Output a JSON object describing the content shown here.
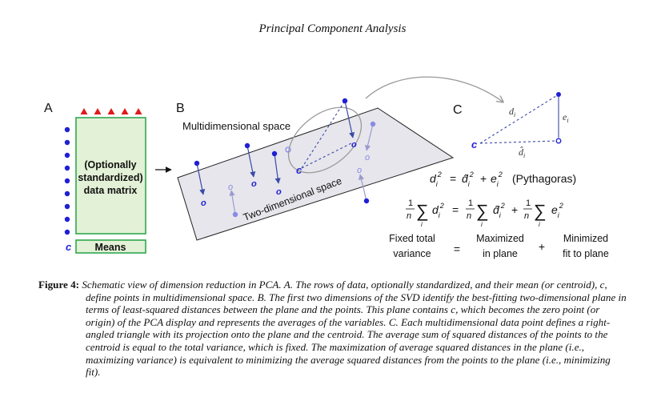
{
  "header": {
    "running_title": "Principal Component Analysis"
  },
  "figure": {
    "panel_a": {
      "label": "A",
      "matrix_text": [
        "(Optionally",
        "standardized)",
        "data matrix"
      ],
      "means_label": "Means",
      "centroid_label": "c",
      "num_rows": 9,
      "num_columns": 5
    },
    "panel_b": {
      "label": "B",
      "multidim_label": "Multidimensional space",
      "plane_label": "Two-dimensional space",
      "centroid_label": "c",
      "projection_label": "o"
    },
    "panel_c": {
      "label": "C",
      "centroid_label": "c",
      "d_label": "d",
      "d_sub": "i",
      "dhat_label": "d̂",
      "dhat_sub": "i",
      "e_label": "e",
      "e_sub": "i",
      "pythagoras_note": "(Pythagoras)",
      "sum_index": "i",
      "fraction_num": "1",
      "fraction_den": "n",
      "fixed_label": [
        "Fixed total",
        "variance"
      ],
      "plane_label": [
        "Maximized",
        "in plane"
      ],
      "fit_label": [
        "Minimized",
        "fit to plane"
      ],
      "equals_sign": "=",
      "plus_sign": "+"
    },
    "colors": {
      "point_blue": "#1f1fd6",
      "projection_blue": "#8a8ae6",
      "green_border": "#2fa84f",
      "green_fill": "#e3f1d6",
      "red_triangle": "#e01a1a",
      "plane_fill": "#e6e6ec"
    }
  },
  "caption": {
    "label": "Figure 4:",
    "text": "Schematic view of dimension reduction in PCA. A. The rows of data, optionally standardized, and their mean (or centroid), c, define points in multidimensional space. B. The first two dimensions of the SVD identify the best-fitting two-dimensional plane in terms of least-squared distances between the plane and the points. This plane contains c, which becomes the zero point (or origin) of the PCA display and represents the averages of the variables. C. Each multidimensional data point defines a right-angled triangle with its projection onto the plane and the centroid. The average sum of squared distances of the points to the centroid is equal to the total variance, which is fixed. The maximization of average squared distances in the plane (i.e., maximizing variance) is equivalent to minimizing the average squared distances from the points to the plane (i.e., minimizing fit)."
  }
}
